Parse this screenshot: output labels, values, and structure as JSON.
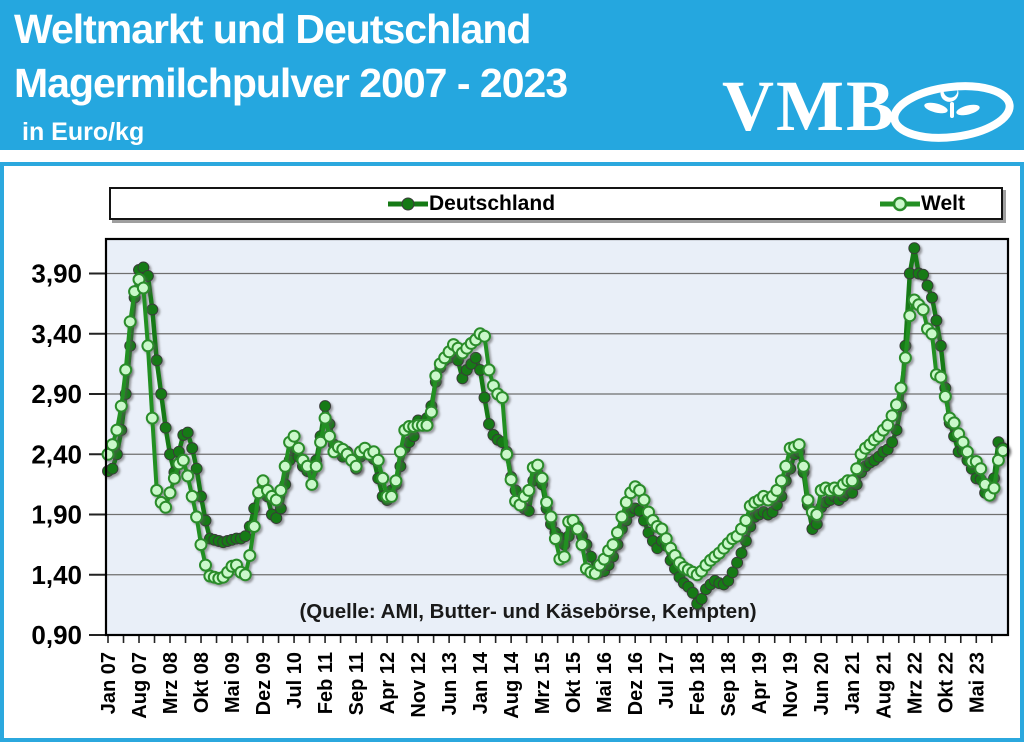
{
  "header": {
    "title_line1": "Weltmarkt und Deutschland",
    "title_line2": "Magermilchpulver 2007 - 2023",
    "unit": "in Euro/kg",
    "logo_text": "VMB",
    "background_color": "#25a7df"
  },
  "source_note": "(Quelle: AMI, Butter- und Käsebörse, Kempten)",
  "chart_data": {
    "type": "line",
    "title": "Weltmarkt und Deutschland Magermilchpulver 2007 - 2023",
    "ylabel": "Euro/kg",
    "x_start": "Jan 2007",
    "x_frequency": "monthly",
    "ylim": [
      0.9,
      4.19
    ],
    "grid": "horizontal",
    "legend_position": "top",
    "plot_background": "#e9eff8",
    "y_tick_labels": [
      "0,90",
      "1,40",
      "1,90",
      "2,40",
      "2,90",
      "3,40",
      "3,90"
    ],
    "y_tick_values": [
      0.9,
      1.4,
      1.9,
      2.4,
      2.9,
      3.4,
      3.9
    ],
    "x_tick_labels": [
      "Jan 07",
      "Aug 07",
      "Mrz 08",
      "Okt 08",
      "Mai 09",
      "Dez 09",
      "Jul 10",
      "Feb 11",
      "Sep 11",
      "Apr 12",
      "Nov 12",
      "Jun 13",
      "Jan 14",
      "Aug 14",
      "Mrz 15",
      "Okt 15",
      "Mai 16",
      "Dez 16",
      "Jul 17",
      "Feb 18",
      "Sep 18",
      "Apr 19",
      "Nov 19",
      "Jun 20",
      "Jan 21",
      "Aug 21",
      "Mrz 22",
      "Okt 22",
      "Mai 23"
    ],
    "x_tick_step_months": 7,
    "series": [
      {
        "name": "Deutschland",
        "line_color": "#157a15",
        "marker_fill": "#157a15",
        "marker_stroke": "#3a3a3a",
        "values": [
          2.26,
          2.28,
          2.4,
          2.6,
          2.9,
          3.3,
          3.7,
          3.93,
          3.95,
          3.88,
          3.6,
          3.18,
          2.9,
          2.62,
          2.4,
          2.25,
          2.42,
          2.56,
          2.58,
          2.45,
          2.28,
          2.05,
          1.85,
          1.7,
          1.69,
          1.68,
          1.67,
          1.68,
          1.69,
          1.7,
          1.7,
          1.72,
          1.8,
          1.95,
          2.08,
          2.12,
          2.05,
          1.9,
          1.87,
          1.95,
          2.15,
          2.35,
          2.45,
          2.38,
          2.3,
          2.26,
          2.25,
          2.35,
          2.55,
          2.8,
          2.65,
          2.48,
          2.42,
          2.38,
          2.42,
          2.36,
          2.28,
          2.38,
          2.42,
          2.4,
          2.36,
          2.2,
          2.05,
          2.02,
          2.1,
          2.15,
          2.3,
          2.45,
          2.5,
          2.55,
          2.68,
          2.65,
          2.7,
          2.8,
          3.0,
          3.12,
          3.18,
          3.2,
          3.24,
          3.18,
          3.03,
          3.1,
          3.15,
          3.2,
          3.1,
          2.87,
          2.65,
          2.56,
          2.52,
          2.5,
          2.42,
          2.21,
          2.1,
          2.02,
          1.95,
          1.93,
          2.18,
          2.24,
          2.15,
          1.95,
          1.82,
          1.75,
          1.71,
          1.65,
          1.72,
          1.83,
          1.8,
          1.72,
          1.65,
          1.55,
          1.45,
          1.42,
          1.43,
          1.48,
          1.55,
          1.65,
          1.78,
          1.85,
          1.92,
          1.95,
          1.93,
          1.85,
          1.75,
          1.68,
          1.62,
          1.68,
          1.64,
          1.52,
          1.45,
          1.38,
          1.33,
          1.3,
          1.25,
          1.16,
          1.2,
          1.28,
          1.32,
          1.35,
          1.33,
          1.32,
          1.35,
          1.42,
          1.5,
          1.58,
          1.68,
          1.8,
          1.88,
          1.9,
          1.92,
          1.9,
          1.92,
          1.98,
          2.05,
          2.18,
          2.28,
          2.4,
          2.42,
          2.25,
          1.98,
          1.78,
          1.82,
          1.96,
          2.0,
          2.02,
          2.05,
          2.02,
          2.05,
          2.08,
          2.08,
          2.15,
          2.25,
          2.3,
          2.33,
          2.35,
          2.38,
          2.42,
          2.44,
          2.5,
          2.6,
          2.8,
          3.3,
          3.9,
          4.11,
          3.9,
          3.89,
          3.8,
          3.7,
          3.51,
          3.3,
          2.95,
          2.66,
          2.55,
          2.42,
          2.43,
          2.35,
          2.28,
          2.2,
          2.19,
          2.08,
          2.07,
          2.2,
          2.5,
          2.45
        ]
      },
      {
        "name": "Welt",
        "line_color": "#239023",
        "marker_fill": "#caf8ca",
        "marker_stroke": "#2a8c2a",
        "values": [
          2.4,
          2.48,
          2.6,
          2.8,
          3.1,
          3.5,
          3.75,
          3.85,
          3.78,
          3.3,
          2.7,
          2.1,
          2.0,
          1.96,
          2.08,
          2.2,
          2.32,
          2.35,
          2.22,
          2.05,
          1.88,
          1.65,
          1.48,
          1.39,
          1.38,
          1.37,
          1.38,
          1.42,
          1.47,
          1.48,
          1.42,
          1.4,
          1.56,
          1.8,
          2.08,
          2.18,
          2.1,
          2.05,
          2.02,
          2.1,
          2.3,
          2.5,
          2.55,
          2.45,
          2.35,
          2.3,
          2.15,
          2.3,
          2.5,
          2.7,
          2.55,
          2.42,
          2.46,
          2.44,
          2.4,
          2.35,
          2.3,
          2.42,
          2.45,
          2.4,
          2.42,
          2.35,
          2.2,
          2.05,
          2.05,
          2.18,
          2.42,
          2.6,
          2.63,
          2.63,
          2.64,
          2.64,
          2.64,
          2.75,
          3.05,
          3.15,
          3.2,
          3.25,
          3.31,
          3.28,
          3.24,
          3.28,
          3.32,
          3.35,
          3.4,
          3.38,
          3.1,
          2.97,
          2.9,
          2.87,
          2.4,
          2.19,
          2.01,
          1.98,
          2.05,
          2.1,
          2.29,
          2.31,
          2.2,
          2.0,
          1.88,
          1.7,
          1.53,
          1.55,
          1.84,
          1.85,
          1.78,
          1.65,
          1.45,
          1.42,
          1.41,
          1.48,
          1.53,
          1.6,
          1.65,
          1.75,
          1.88,
          2.0,
          2.08,
          2.13,
          2.1,
          2.02,
          1.92,
          1.85,
          1.8,
          1.78,
          1.7,
          1.62,
          1.56,
          1.5,
          1.46,
          1.44,
          1.42,
          1.4,
          1.43,
          1.48,
          1.52,
          1.55,
          1.58,
          1.62,
          1.66,
          1.7,
          1.72,
          1.78,
          1.85,
          1.97,
          2.0,
          2.02,
          2.05,
          2.02,
          2.05,
          2.1,
          2.18,
          2.3,
          2.45,
          2.46,
          2.48,
          2.3,
          2.02,
          1.92,
          1.9,
          2.1,
          2.12,
          2.1,
          2.12,
          2.1,
          2.15,
          2.18,
          2.18,
          2.28,
          2.4,
          2.45,
          2.48,
          2.52,
          2.55,
          2.6,
          2.64,
          2.72,
          2.81,
          2.95,
          3.2,
          3.55,
          3.68,
          3.64,
          3.6,
          3.44,
          3.4,
          3.06,
          3.04,
          2.88,
          2.7,
          2.66,
          2.57,
          2.5,
          2.42,
          2.34,
          2.34,
          2.28,
          2.15,
          2.06,
          2.12,
          2.35,
          2.43
        ]
      }
    ]
  }
}
